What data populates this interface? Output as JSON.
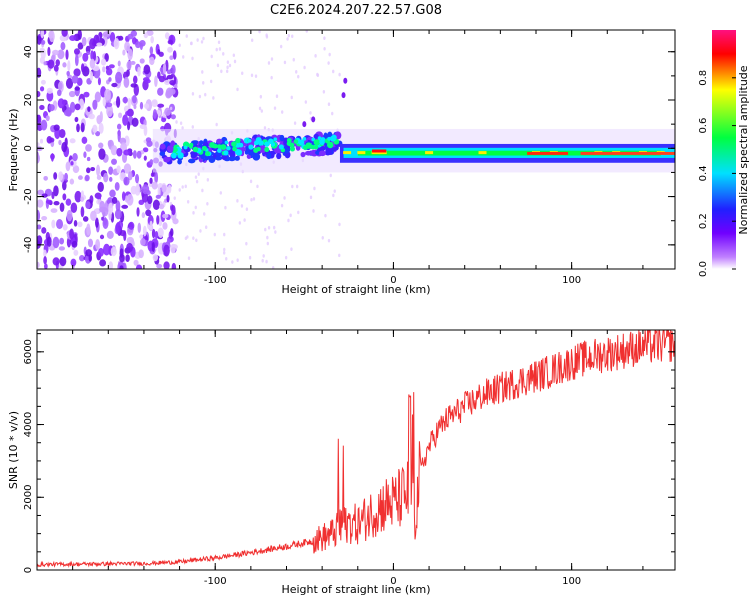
{
  "title": "C2E6.2024.207.22.57.G08",
  "chart_data": [
    {
      "type": "heatmap",
      "xlabel": "Height of straight line (km)",
      "ylabel": "Frequency (Hz)",
      "xlim": [
        -200,
        158
      ],
      "ylim": [
        -50,
        49
      ],
      "xticks": [
        -100,
        0,
        100
      ],
      "xtick_labels": [
        "-100",
        "0",
        "100"
      ],
      "yticks": [
        -40,
        -20,
        0,
        20,
        40
      ],
      "ytick_labels": [
        "-40",
        "-20",
        "0",
        "20",
        "40"
      ],
      "grid": false,
      "description_values": {
        "carrier_line_frequency_hz": -2,
        "noisy_region_x_max_km": -120,
        "high_amplitude_center_x_km": [
          -10,
          125
        ]
      }
    },
    {
      "type": "line",
      "xlabel": "Height of straight line (km)",
      "ylabel": "SNR (10 * v/v)",
      "xlim": [
        -200,
        158
      ],
      "ylim": [
        0,
        6600
      ],
      "xticks": [
        -100,
        0,
        100
      ],
      "xtick_labels": [
        "-100",
        "0",
        "100"
      ],
      "yticks": [
        0,
        2000,
        4000,
        6000
      ],
      "ytick_labels": [
        "0",
        "2000",
        "4000",
        "6000"
      ],
      "color": "#f03030",
      "grid": false,
      "x": [
        -200,
        -180,
        -160,
        -140,
        -120,
        -110,
        -100,
        -80,
        -60,
        -45,
        -35,
        -30,
        -25,
        -20,
        -15,
        -10,
        -5,
        0,
        5,
        10,
        12,
        15,
        20,
        25,
        30,
        40,
        50,
        60,
        75,
        90,
        100,
        110,
        120,
        130,
        140,
        150,
        158
      ],
      "values": [
        150,
        160,
        170,
        180,
        220,
        280,
        330,
        480,
        650,
        800,
        980,
        1150,
        1300,
        1250,
        1450,
        1650,
        1800,
        1850,
        2000,
        2200,
        1300,
        2700,
        3400,
        3850,
        4150,
        4500,
        4800,
        5000,
        5250,
        5500,
        5700,
        5850,
        5950,
        6050,
        6150,
        6200,
        6250
      ]
    },
    {
      "type": "colorbar",
      "label": "Normalized spectral amplitude",
      "ticks": [
        0.0,
        0.2,
        0.4,
        0.6,
        0.8
      ],
      "tick_labels": [
        "0.0",
        "0.2",
        "0.4",
        "0.6",
        "0.8"
      ],
      "range": [
        0,
        1
      ],
      "colors": [
        "#ffffff",
        "#a020f0",
        "#2a1bff",
        "#00e5ff",
        "#00ff28",
        "#ffff00",
        "#ff0000",
        "#ff0080"
      ]
    }
  ]
}
